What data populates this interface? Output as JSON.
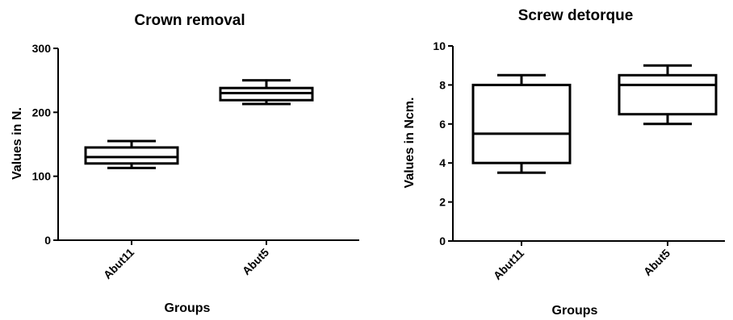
{
  "chart_data": [
    {
      "type": "box",
      "title": "Crown removal",
      "xlabel": "Groups",
      "ylabel": "Values in N.",
      "ylim": [
        0,
        300
      ],
      "yticks": [
        0,
        100,
        200,
        300
      ],
      "categories": [
        "Abut11",
        "Abut5"
      ],
      "boxes": [
        {
          "name": "Abut11",
          "min": 113,
          "q1": 120,
          "median": 130,
          "q3": 145,
          "max": 155
        },
        {
          "name": "Abut5",
          "min": 213,
          "q1": 219,
          "median": 230,
          "q3": 238,
          "max": 250
        }
      ],
      "grid": false
    },
    {
      "type": "box",
      "title": "Screw detorque",
      "xlabel": "Groups",
      "ylabel": "Values in Ncm.",
      "ylim": [
        0,
        10
      ],
      "yticks": [
        0,
        2,
        4,
        6,
        8,
        10
      ],
      "categories": [
        "Abut11",
        "Abut5"
      ],
      "boxes": [
        {
          "name": "Abut11",
          "min": 3.5,
          "q1": 4.0,
          "median": 5.5,
          "q3": 8.0,
          "max": 8.5
        },
        {
          "name": "Abut5",
          "min": 6.0,
          "q1": 6.5,
          "median": 8.0,
          "q3": 8.5,
          "max": 9.0
        }
      ],
      "grid": false
    }
  ]
}
